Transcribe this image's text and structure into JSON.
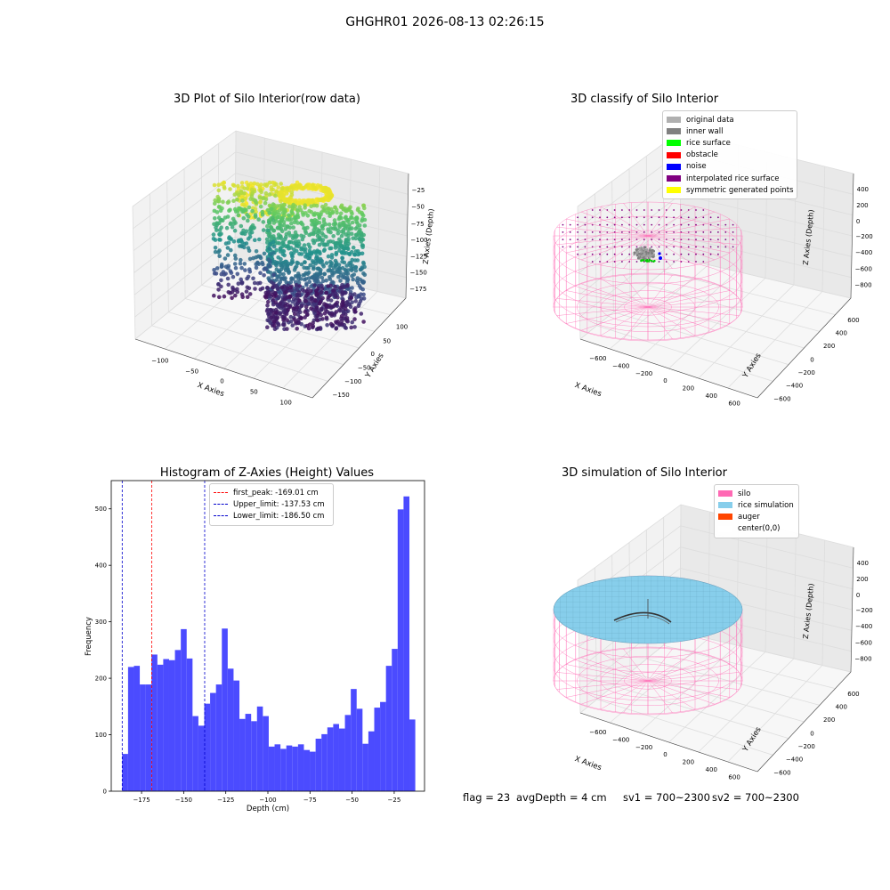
{
  "figure": {
    "suptitle": "GHGHR01 2026-08-13 02:26:15"
  },
  "raw_plot": {
    "title": "3D Plot of Silo Interior(row data)",
    "xlabel": "X Axies",
    "ylabel": "Y Axies",
    "zlabel": "Z Axies (Depth)",
    "xticks": [
      "−100",
      "−50",
      "0",
      "50",
      "100"
    ],
    "yticks": [
      "100",
      "50",
      "0",
      "−50",
      "−100",
      "−150"
    ],
    "zticks": [
      "−25",
      "−50",
      "−75",
      "−100",
      "−125",
      "−150",
      "−175"
    ]
  },
  "classify_plot": {
    "title": "3D classify of Silo Interior",
    "xlabel": "X Axies",
    "ylabel": "Y Axies",
    "zlabel": "Z Axies (Depth)",
    "xticks": [
      "−600",
      "−400",
      "−200",
      "0",
      "200",
      "400",
      "600"
    ],
    "yticks": [
      "600",
      "400",
      "200",
      "0",
      "−200",
      "−400",
      "−600"
    ],
    "zticks": [
      "400",
      "200",
      "0",
      "−200",
      "−400",
      "−600",
      "−800"
    ],
    "legend": [
      {
        "label": "original data",
        "color": "#b0b0b0"
      },
      {
        "label": "inner wall",
        "color": "#808080"
      },
      {
        "label": "rice surface",
        "color": "#00ff00"
      },
      {
        "label": "obstacle",
        "color": "#ff0000"
      },
      {
        "label": "noise",
        "color": "#0000ff"
      },
      {
        "label": "interpolated rice surface",
        "color": "#800080"
      },
      {
        "label": "symmetric generated points",
        "color": "#ffff00"
      }
    ]
  },
  "simulation_plot": {
    "title": "3D simulation of Silo Interior",
    "xlabel": "X Axies",
    "ylabel": "Y Axies",
    "zlabel": "Z Axies (Depth)",
    "xticks": [
      "−600",
      "−400",
      "−200",
      "0",
      "200",
      "400",
      "600"
    ],
    "yticks": [
      "600",
      "400",
      "200",
      "0",
      "−200",
      "−400",
      "−600"
    ],
    "zticks": [
      "400",
      "200",
      "0",
      "−200",
      "−400",
      "−600",
      "−800"
    ],
    "legend": [
      {
        "label": "silo",
        "color": "#ff69b4"
      },
      {
        "label": "rice simulation",
        "color": "#87ceeb"
      },
      {
        "label": "auger",
        "color": "#ff4500"
      },
      {
        "label": "center(0,0)",
        "color": "#ffffff"
      }
    ]
  },
  "status": {
    "flag": "flag = 23",
    "avg_depth": "avgDepth = 4 cm",
    "sv1": "sv1 = 700~2300",
    "sv2": "sv2 = 700~2300"
  },
  "chart_data": {
    "type": "bar",
    "title": "Histogram of Z-Axies (Height) Values",
    "xlabel": "Depth (cm)",
    "ylabel": "Frequency",
    "xlim": [
      -193,
      -7
    ],
    "ylim": [
      0,
      550
    ],
    "xticks": [
      -175,
      -150,
      -125,
      -100,
      -75,
      -50,
      -25
    ],
    "xtick_labels": [
      "−175",
      "−150",
      "−125",
      "−100",
      "−75",
      "−50",
      "−25"
    ],
    "yticks": [
      0,
      100,
      200,
      300,
      400,
      500
    ],
    "bar_color": "#4b4bff",
    "bin_start": -186.5,
    "bin_width": 3.48,
    "values": [
      66,
      220,
      222,
      189,
      189,
      242,
      224,
      234,
      232,
      250,
      287,
      235,
      133,
      116,
      155,
      174,
      189,
      288,
      217,
      196,
      128,
      137,
      124,
      150,
      133,
      79,
      83,
      75,
      81,
      79,
      83,
      73,
      70,
      93,
      101,
      113,
      119,
      111,
      135,
      181,
      146,
      84,
      106,
      148,
      158,
      222,
      252,
      499,
      522,
      127
    ],
    "lines": [
      {
        "label": "first_peak: -169.01 cm",
        "x": -169.01,
        "color": "#ff0000"
      },
      {
        "label": "Upper_limit: -137.53 cm",
        "x": -137.53,
        "color": "#0000cc"
      },
      {
        "label": "Lower_limit: -186.50 cm",
        "x": -186.5,
        "color": "#0000cc"
      }
    ]
  }
}
